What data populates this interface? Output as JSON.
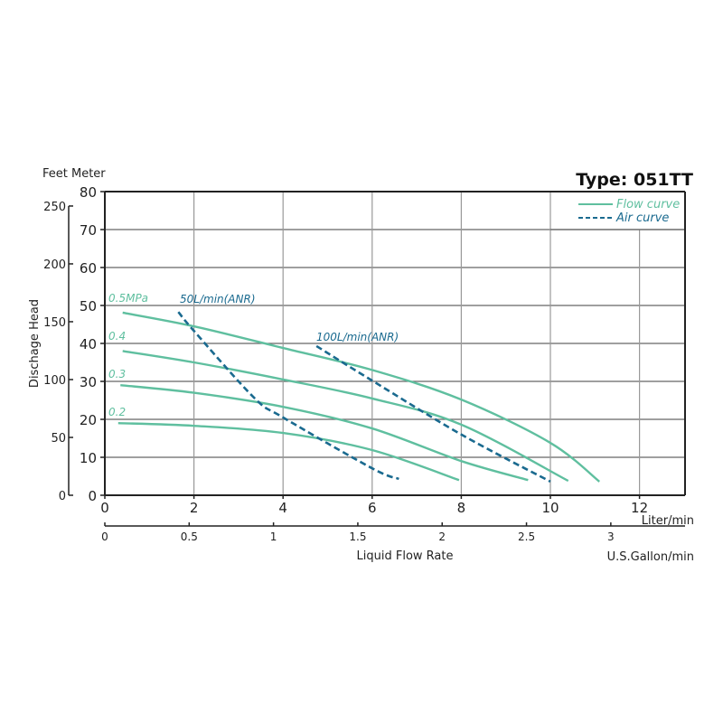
{
  "chart_data": {
    "type": "line",
    "title": "Type: 051TT",
    "xlabel": "Liquid Flow Rate",
    "x_unit_primary": "Liter/min",
    "x_unit_secondary": "U.S.Gallon/min",
    "ylabel": "Dischage Head",
    "y_unit_header": "Feet Meter",
    "xlim": [
      0,
      13
    ],
    "ylim": [
      0,
      80
    ],
    "grid": true,
    "legend_position": "top-right",
    "legend": [
      {
        "label": "Flow curve",
        "style": "solid",
        "color": "#5fbf9f"
      },
      {
        "label": "Air curve",
        "style": "dashed",
        "color": "#1a6a8f"
      }
    ],
    "x_ticks_liter": [
      0,
      2,
      4,
      6,
      8,
      10,
      12
    ],
    "x_ticks_gallon": [
      "0",
      "0.5",
      "1",
      "1.5",
      "2",
      "2.5",
      "3"
    ],
    "y_ticks_meter": [
      0,
      10,
      20,
      30,
      40,
      50,
      60,
      70,
      80
    ],
    "y_ticks_feet": [
      0,
      50,
      100,
      150,
      200,
      250
    ],
    "series": [
      {
        "name": "0.5MPa",
        "type": "flow",
        "x": [
          0.4,
          2,
          4,
          6,
          8,
          10,
          11.1
        ],
        "y": [
          48.1,
          44.5,
          38.8,
          33,
          25.2,
          13.8,
          3.6
        ]
      },
      {
        "name": "0.4",
        "type": "flow",
        "x": [
          0.4,
          2,
          4,
          6,
          8,
          10.4
        ],
        "y": [
          38,
          35,
          30.5,
          25.5,
          18.6,
          3.8
        ]
      },
      {
        "name": "0.3",
        "type": "flow",
        "x": [
          0.35,
          2,
          4,
          6,
          8,
          9.5
        ],
        "y": [
          29,
          27,
          23.3,
          17.6,
          9,
          4
        ]
      },
      {
        "name": "0.2",
        "type": "flow",
        "x": [
          0.3,
          2,
          4,
          6,
          7.95
        ],
        "y": [
          19,
          18.3,
          16.4,
          11.9,
          4
        ]
      },
      {
        "name": "50L/min(ANR)",
        "type": "air",
        "x": [
          1.65,
          2,
          3.35,
          4,
          6,
          6.6
        ],
        "y": [
          48.3,
          43.3,
          25.7,
          20.5,
          7.1,
          4.3
        ]
      },
      {
        "name": "100L/min(ANR)",
        "type": "air",
        "x": [
          4.75,
          6,
          8,
          10
        ],
        "y": [
          39.3,
          30.2,
          16,
          3.6
        ]
      }
    ],
    "annotations": [
      "0.5MPa",
      "0.4",
      "0.3",
      "0.2",
      "50L/min(ANR)",
      "100L/min(ANR)"
    ]
  },
  "ui": {
    "title": "Type: 051TT",
    "y_header": "Feet Meter",
    "ylabel": "Dischage Head",
    "xlabel": "Liquid Flow Rate",
    "x_unit_primary": "Liter/min",
    "x_unit_secondary": "U.S.Gallon/min",
    "legend_flow": "Flow curve",
    "legend_air": "Air curve",
    "lbl_05": "0.5MPa",
    "lbl_04": "0.4",
    "lbl_03": "0.3",
    "lbl_02": "0.2",
    "lbl_50": "50L/min(ANR)",
    "lbl_100": "100L/min(ANR)",
    "colors": {
      "flow": "#5fbf9f",
      "air": "#1a6a8f",
      "grid": "#999999",
      "axis": "#222222"
    }
  }
}
